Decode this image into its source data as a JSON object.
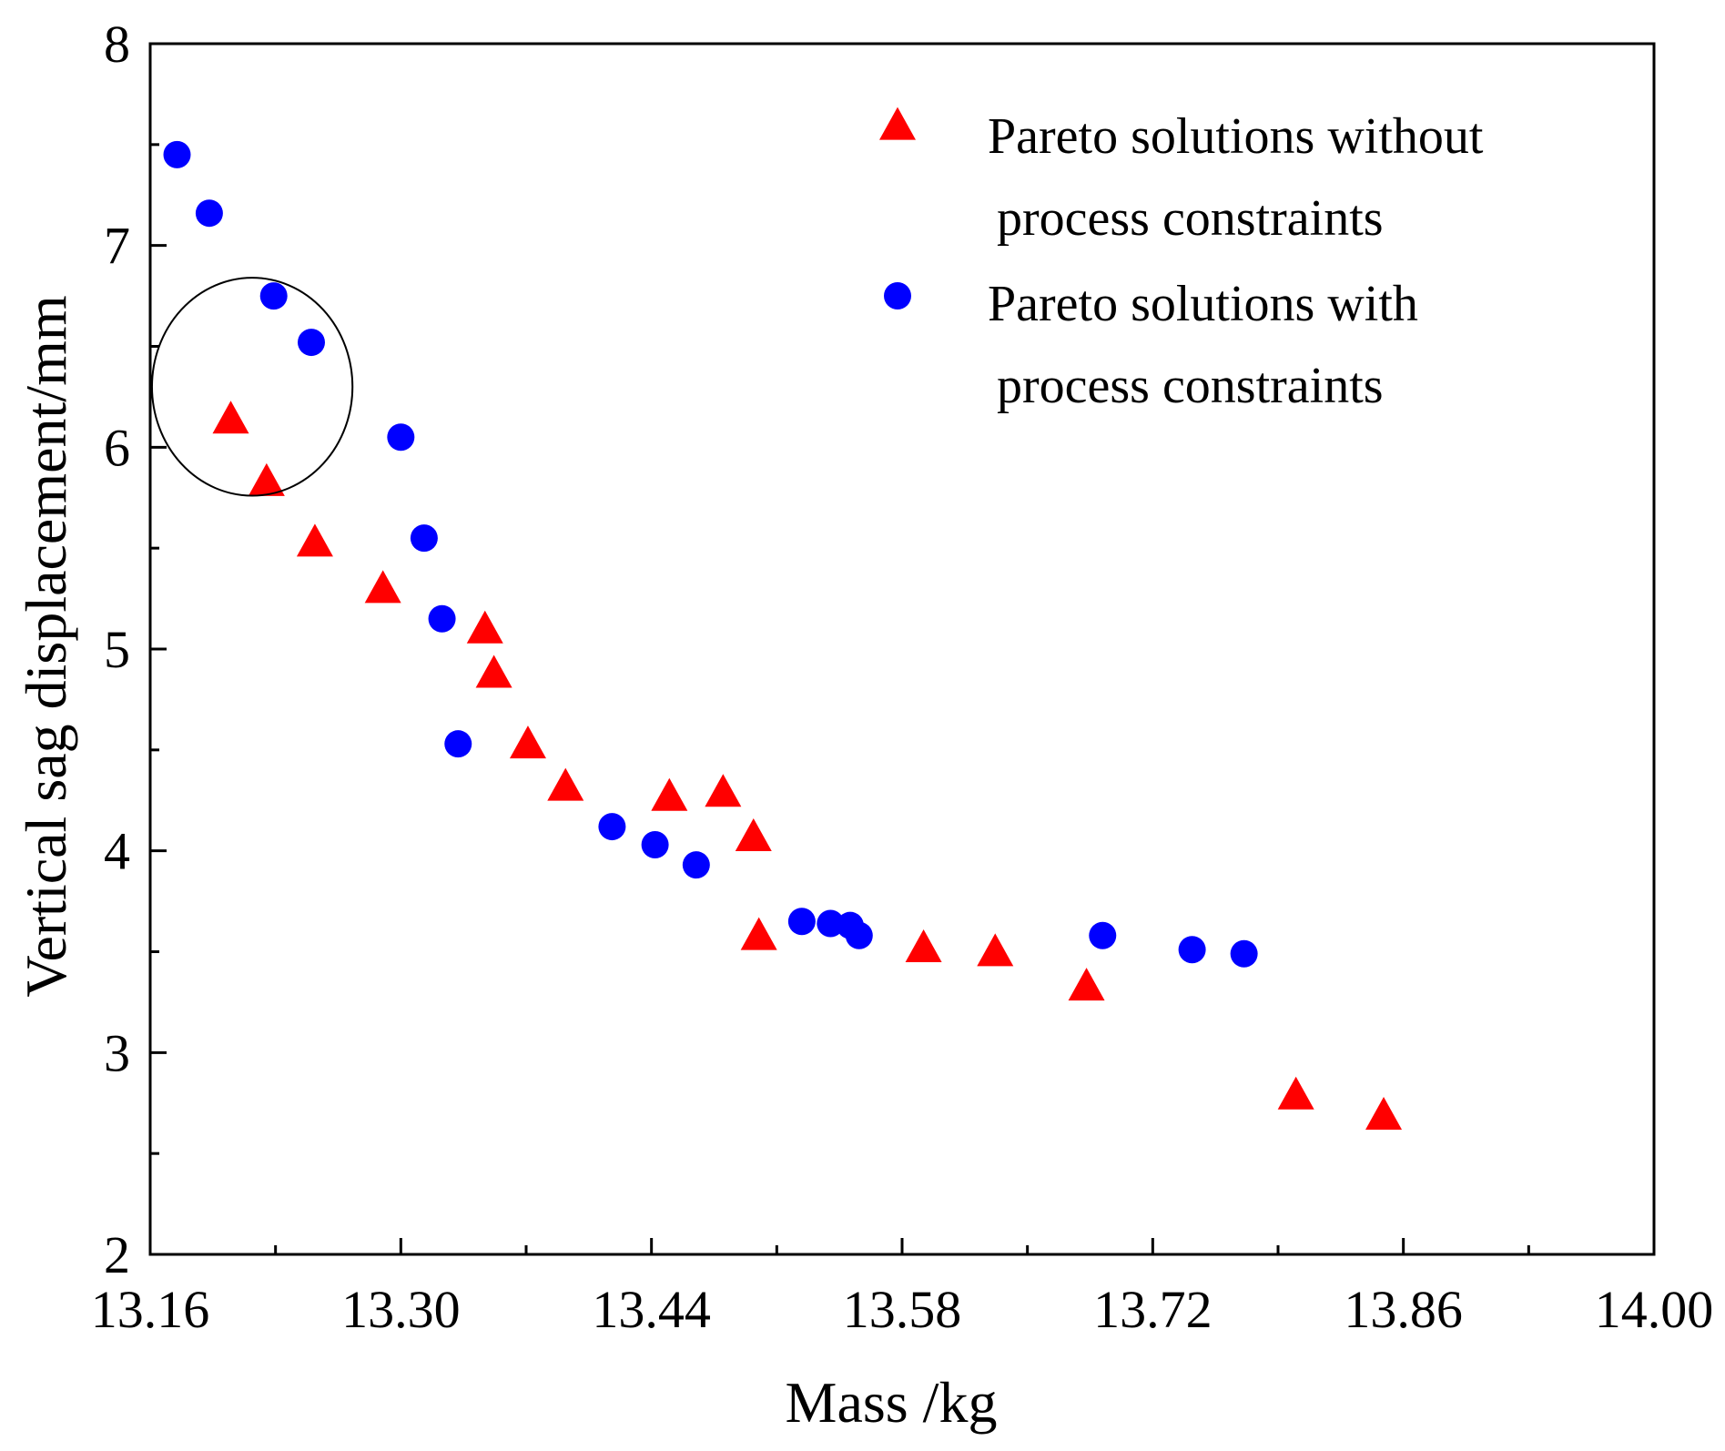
{
  "chart_data": {
    "type": "scatter",
    "title": "",
    "xlabel": "Mass /kg",
    "ylabel": "Vertical sag displacement/mm",
    "xlim": [
      13.16,
      14.0
    ],
    "ylim": [
      2,
      8
    ],
    "xticks": [
      13.16,
      13.3,
      13.44,
      13.58,
      13.72,
      13.86,
      14.0
    ],
    "xtick_labels": [
      "13.16",
      "13.30",
      "13.44",
      "13.58",
      "13.72",
      "13.86",
      "14.00"
    ],
    "yticks": [
      2,
      3,
      4,
      5,
      6,
      7,
      8
    ],
    "ytick_labels": [
      "2",
      "3",
      "4",
      "5",
      "6",
      "7",
      "8"
    ],
    "grid": false,
    "legend_position": "top-right",
    "series": [
      {
        "name": "Pareto solutions without process constraints",
        "legend_lines": [
          "Pareto solutions without",
          "process constraints"
        ],
        "marker": "triangle",
        "color": "#ff0000",
        "x": [
          13.205,
          13.225,
          13.252,
          13.29,
          13.347,
          13.352,
          13.371,
          13.392,
          13.45,
          13.48,
          13.497,
          13.5,
          13.592,
          13.632,
          13.683,
          13.8,
          13.849
        ],
        "y": [
          6.13,
          5.82,
          5.52,
          5.29,
          5.09,
          4.87,
          4.52,
          4.31,
          4.26,
          4.28,
          4.06,
          3.57,
          3.51,
          3.49,
          3.32,
          2.78,
          2.68
        ]
      },
      {
        "name": "Pareto solutions with process constraints",
        "legend_lines": [
          "Pareto solutions with",
          "process constraints"
        ],
        "marker": "circle",
        "color": "#0000ff",
        "x": [
          13.175,
          13.193,
          13.229,
          13.25,
          13.3,
          13.313,
          13.323,
          13.332,
          13.418,
          13.442,
          13.465,
          13.524,
          13.54,
          13.551,
          13.556,
          13.692,
          13.742,
          13.771
        ],
        "y": [
          7.45,
          7.16,
          6.75,
          6.52,
          6.05,
          5.55,
          5.15,
          4.53,
          4.12,
          4.03,
          3.93,
          3.65,
          3.64,
          3.63,
          3.58,
          3.58,
          3.51,
          3.49
        ]
      }
    ],
    "annotations": [
      {
        "type": "ellipse",
        "label": "",
        "cx": 13.217,
        "cy": 6.3,
        "rx": 0.056,
        "ry": 0.54
      }
    ]
  }
}
